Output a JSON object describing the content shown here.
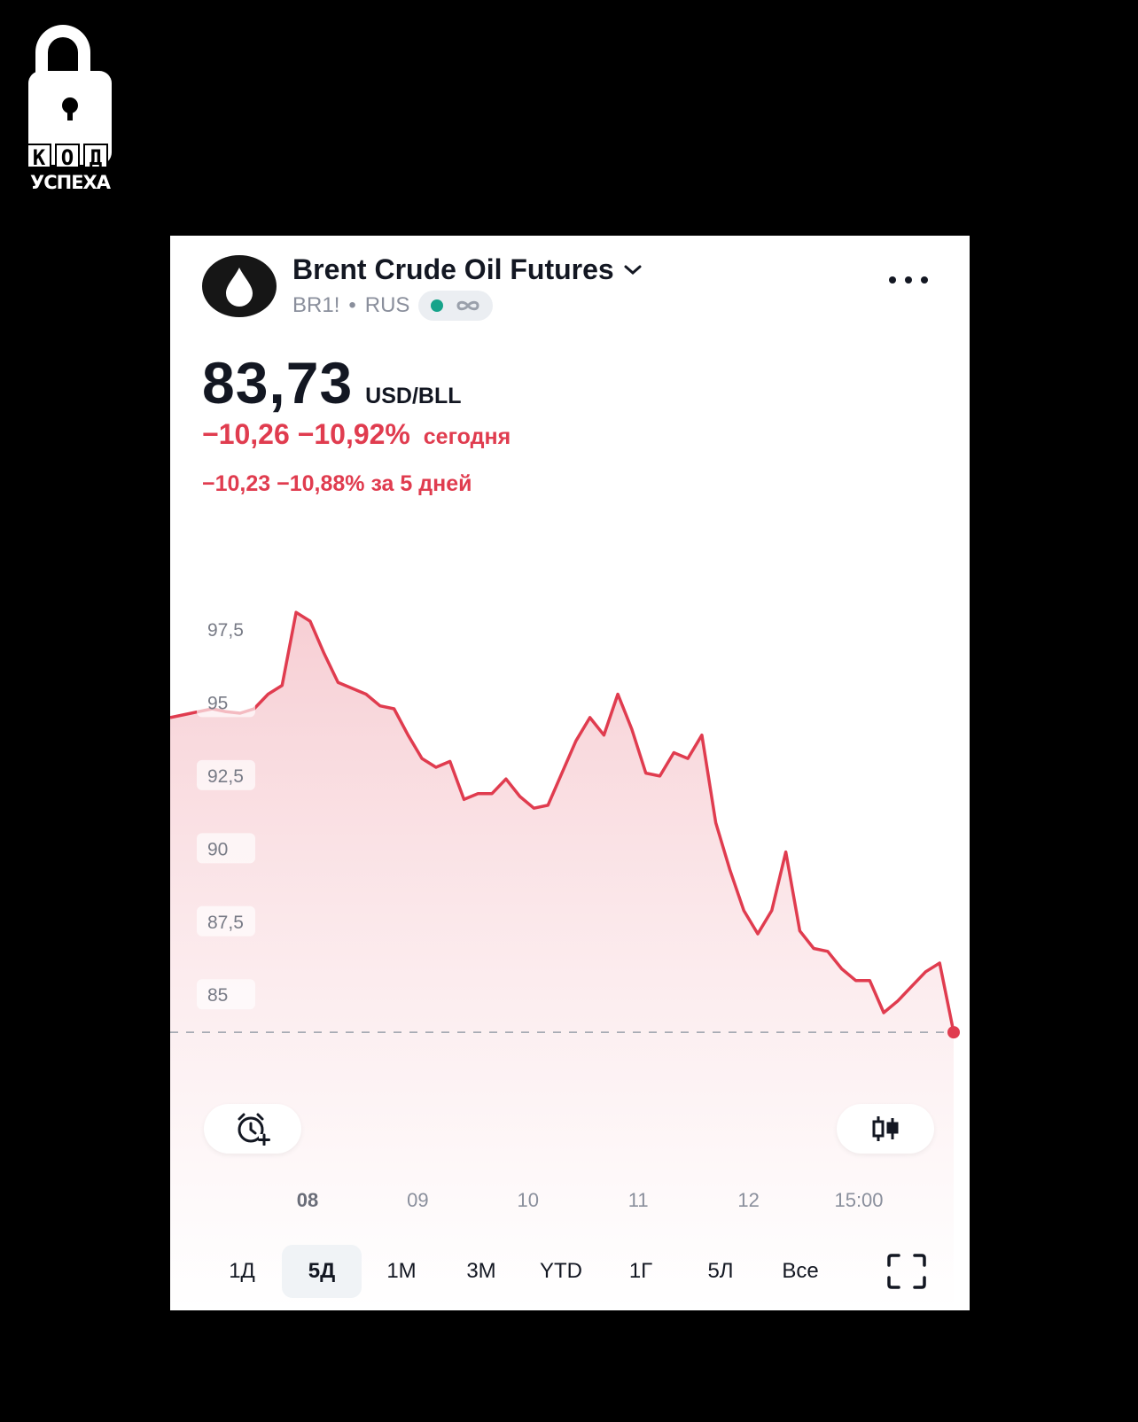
{
  "logo": {
    "letters": [
      "К",
      "О",
      "Д"
    ],
    "subtitle": "УСПЕХА"
  },
  "header": {
    "title": "Brent Crude Oil Futures",
    "symbol": "BR1!",
    "exchange": "RUS",
    "separator": "•",
    "asset_icon": "oil-drop-icon",
    "market_status_color": "#16a38a"
  },
  "price": {
    "value": "83,73",
    "unit": "USD/BLL",
    "change_today": "−10,26 −10,92%",
    "change_today_label": "сегодня",
    "change_5d": "−10,23 −10,88% за 5 дней",
    "negative_color": "#e03c4f"
  },
  "chart_data": {
    "type": "area",
    "y_ticks": [
      "97,5",
      "95",
      "92,5",
      "90",
      "87,5",
      "85"
    ],
    "x_ticks": [
      "08",
      "09",
      "10",
      "11",
      "12",
      "15:00"
    ],
    "ylim": [
      83.4,
      98.5
    ],
    "y": [
      94.5,
      94.6,
      94.7,
      94.8,
      94.7,
      94.65,
      94.8,
      95.3,
      95.6,
      98.1,
      97.8,
      96.7,
      95.7,
      95.5,
      95.3,
      94.9,
      94.8,
      93.9,
      93.1,
      92.8,
      93.0,
      91.7,
      91.9,
      91.9,
      92.4,
      91.8,
      91.4,
      91.5,
      92.6,
      93.7,
      94.5,
      93.9,
      95.3,
      94.1,
      92.6,
      92.5,
      93.3,
      93.1,
      93.9,
      90.9,
      89.3,
      87.9,
      87.1,
      87.9,
      89.9,
      87.2,
      86.6,
      86.5,
      85.9,
      85.5,
      85.5,
      84.4,
      84.8,
      85.3,
      85.8,
      86.1,
      83.73
    ],
    "last_value": 83.73,
    "line_color": "#e03c4f",
    "grid": false
  },
  "periods": [
    "1Д",
    "5Д",
    "1М",
    "3М",
    "YTD",
    "1Г",
    "5Л",
    "Все"
  ],
  "active_period": "5Д",
  "icons": {
    "more": "more-horizontal-icon",
    "alert": "alarm-add-icon",
    "chart_type": "candlestick-icon",
    "fullscreen": "fullscreen-icon",
    "dropdown": "chevron-down-icon"
  }
}
